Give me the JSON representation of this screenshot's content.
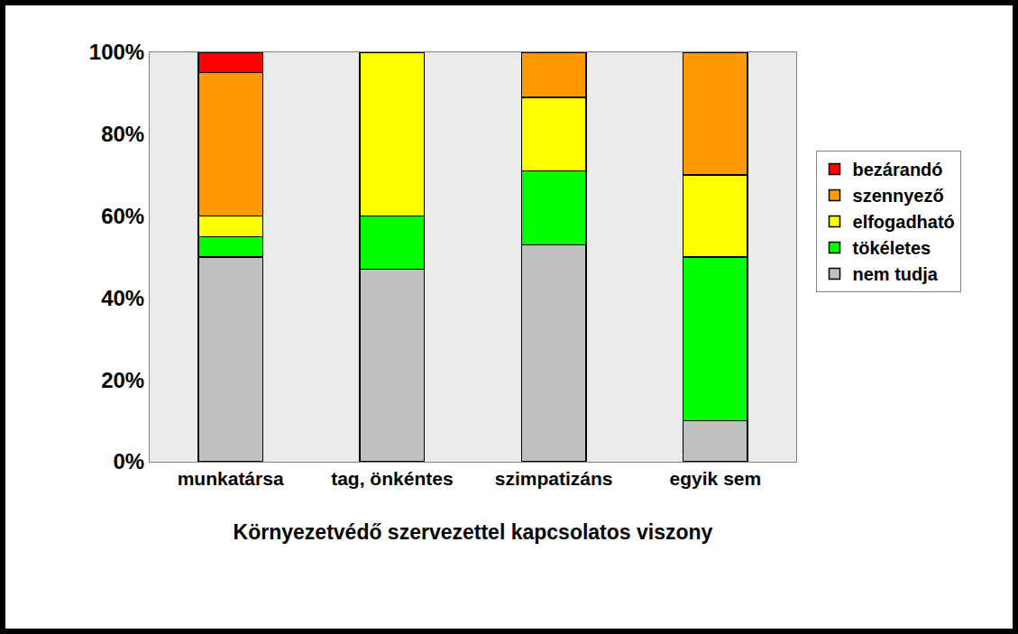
{
  "chart_data": {
    "type": "bar",
    "stacked": true,
    "x_label": "Környezetvédő szervezettel kapcsolatos viszony",
    "categories": [
      "munkatársa",
      "tag, önkéntes",
      "szimpatizáns",
      "egyik sem"
    ],
    "series": [
      {
        "name": "nem tudja",
        "color": "#c0c0c0",
        "values": [
          50,
          47,
          53,
          10
        ]
      },
      {
        "name": "tökéletes",
        "color": "#00ff00",
        "values": [
          5,
          13,
          18,
          40
        ]
      },
      {
        "name": "elfogadható",
        "color": "#ffff00",
        "values": [
          5,
          40,
          18,
          20
        ]
      },
      {
        "name": "szennyező",
        "color": "#ff9900",
        "values": [
          35,
          0,
          11,
          30
        ]
      },
      {
        "name": "bezárandó",
        "color": "#ff0000",
        "values": [
          5,
          0,
          0,
          0
        ]
      }
    ],
    "ylim": [
      0,
      100
    ],
    "yticks": [
      {
        "value": 0,
        "label": "0%"
      },
      {
        "value": 20,
        "label": "20%"
      },
      {
        "value": 40,
        "label": "40%"
      },
      {
        "value": 60,
        "label": "60%"
      },
      {
        "value": 80,
        "label": "80%"
      },
      {
        "value": 100,
        "label": "100%"
      }
    ],
    "grid": false,
    "legend": "right"
  }
}
